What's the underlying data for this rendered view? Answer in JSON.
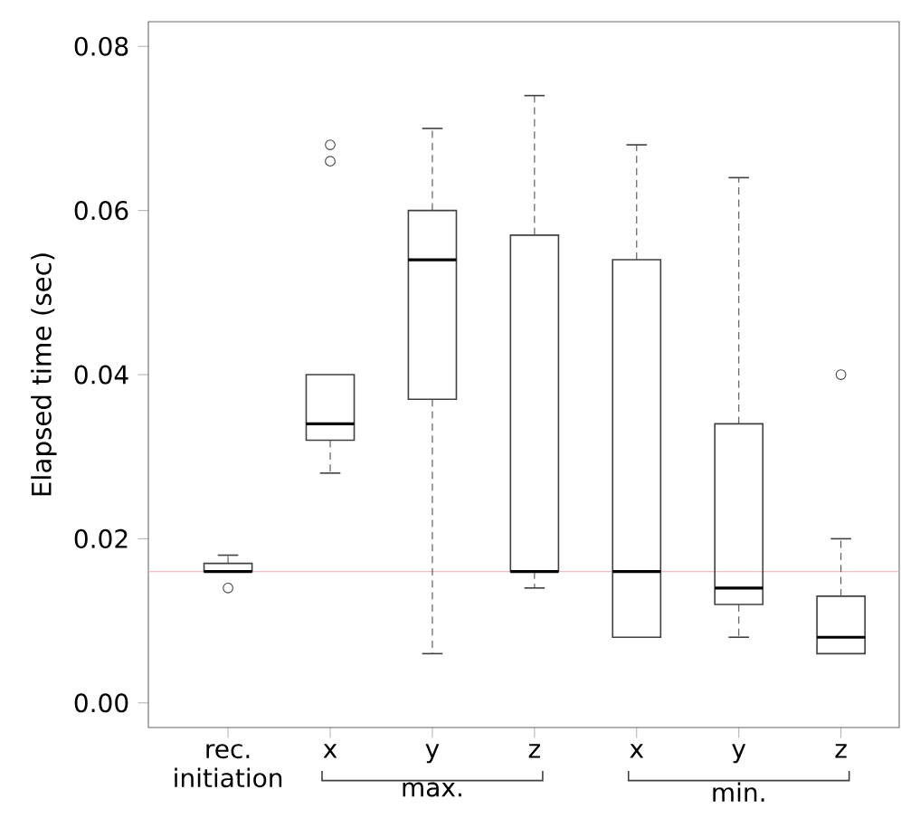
{
  "chart_data": {
    "type": "box",
    "ylabel": "Elapsed time (sec)",
    "categories": [
      "rec. initiation",
      "x",
      "y",
      "z",
      "x",
      "y",
      "z"
    ],
    "boxes": [
      {
        "low": 0.016,
        "q1": 0.016,
        "median": 0.016,
        "q3": 0.017,
        "high": 0.018,
        "outliers": [
          0.014
        ]
      },
      {
        "low": 0.028,
        "q1": 0.032,
        "median": 0.034,
        "q3": 0.04,
        "high": 0.04,
        "outliers": [
          0.066,
          0.068
        ]
      },
      {
        "low": 0.006,
        "q1": 0.037,
        "median": 0.054,
        "q3": 0.06,
        "high": 0.07
      },
      {
        "low": 0.014,
        "q1": 0.016,
        "median": 0.016,
        "q3": 0.057,
        "high": 0.074
      },
      {
        "low": 0.008,
        "q1": 0.008,
        "median": 0.016,
        "q3": 0.054,
        "high": 0.068
      },
      {
        "low": 0.008,
        "q1": 0.012,
        "median": 0.014,
        "q3": 0.034,
        "high": 0.064
      },
      {
        "low": 0.006,
        "q1": 0.006,
        "median": 0.008,
        "q3": 0.013,
        "high": 0.02,
        "outliers": [
          0.04
        ]
      }
    ],
    "ylim": [
      -0.003,
      0.083
    ],
    "yticks": [
      {
        "value": 0,
        "label": "0.00"
      },
      {
        "value": 0.02,
        "label": "0.02"
      },
      {
        "value": 0.04,
        "label": "0.04"
      },
      {
        "value": 0.06,
        "label": "0.06"
      },
      {
        "value": 0.08,
        "label": "0.08"
      }
    ],
    "ref_lines": [
      {
        "axis": "y",
        "value": 0.016,
        "color": "#f4a6ae"
      }
    ],
    "annotations": [
      "max.",
      "min."
    ]
  }
}
